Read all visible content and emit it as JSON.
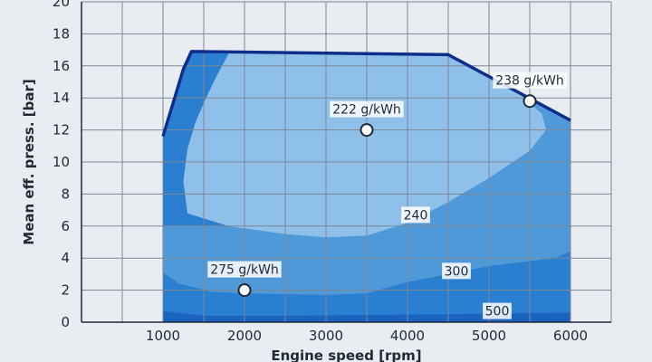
{
  "chart_data": {
    "type": "area",
    "xlabel": "Engine speed [rpm]",
    "ylabel": "Mean eff. press. [bar]",
    "xlim": [
      0,
      6500
    ],
    "ylim": [
      0,
      20
    ],
    "x_ticks": [
      "1000",
      "2000",
      "3000",
      "4000",
      "5000",
      "6000"
    ],
    "y_ticks": [
      "0",
      "2",
      "4",
      "6",
      "8",
      "10",
      "12",
      "14",
      "16",
      "18",
      "20"
    ],
    "grid": true,
    "colors": {
      "background": "#e9edf2",
      "grid": "#7d8794",
      "zone_500_plus": "#1a64c0",
      "zone_300_500": "#2b7fd0",
      "zone_240_300": "#4f99d9",
      "zone_222_240": "#8fc0ea",
      "zone_below_222": "#c5ddf2",
      "full_load_line": "#0d2f8a"
    },
    "full_load_curve": [
      {
        "x": 1000,
        "y": 11.6
      },
      {
        "x": 1250,
        "y": 15.8
      },
      {
        "x": 1350,
        "y": 16.9
      },
      {
        "x": 4500,
        "y": 16.7
      },
      {
        "x": 6000,
        "y": 12.6
      }
    ],
    "contours": [
      {
        "label": "500",
        "label_point": {
          "x": 5100,
          "y": 0.7
        },
        "points": [
          {
            "x": 1000,
            "y": 0.7
          },
          {
            "x": 1500,
            "y": 0.4
          },
          {
            "x": 2500,
            "y": 0.4
          },
          {
            "x": 3500,
            "y": 0.45
          },
          {
            "x": 4500,
            "y": 0.5
          },
          {
            "x": 6000,
            "y": 0.6
          }
        ]
      },
      {
        "label": "300",
        "label_point": {
          "x": 4600,
          "y": 3.2
        },
        "points": [
          {
            "x": 1000,
            "y": 3.1
          },
          {
            "x": 1200,
            "y": 2.4
          },
          {
            "x": 1600,
            "y": 1.9
          },
          {
            "x": 2000,
            "y": 1.8
          },
          {
            "x": 3000,
            "y": 1.7
          },
          {
            "x": 3500,
            "y": 1.8
          },
          {
            "x": 4000,
            "y": 2.5
          },
          {
            "x": 5000,
            "y": 3.5
          },
          {
            "x": 5800,
            "y": 4.0
          },
          {
            "x": 6000,
            "y": 4.4
          }
        ]
      },
      {
        "label": "240",
        "label_point": {
          "x": 4100,
          "y": 6.7
        },
        "points": [
          {
            "x": 1800,
            "y": 16.7
          },
          {
            "x": 1650,
            "y": 15.3
          },
          {
            "x": 1520,
            "y": 13.9
          },
          {
            "x": 1400,
            "y": 12.5
          },
          {
            "x": 1300,
            "y": 10.8
          },
          {
            "x": 1250,
            "y": 8.8
          },
          {
            "x": 1300,
            "y": 6.8
          },
          {
            "x": 1800,
            "y": 6.0
          },
          {
            "x": 2500,
            "y": 5.5
          },
          {
            "x": 3000,
            "y": 5.3
          },
          {
            "x": 3500,
            "y": 5.4
          },
          {
            "x": 4000,
            "y": 6.2
          },
          {
            "x": 4500,
            "y": 7.5
          },
          {
            "x": 5000,
            "y": 9.0
          },
          {
            "x": 5500,
            "y": 10.7
          },
          {
            "x": 5700,
            "y": 12.0
          },
          {
            "x": 5650,
            "y": 13.0
          },
          {
            "x": 5450,
            "y": 13.9
          },
          {
            "x": 5300,
            "y": 14.6
          },
          {
            "x": 5150,
            "y": 15.4
          },
          {
            "x": 5000,
            "y": 16.0
          }
        ]
      }
    ],
    "points": [
      {
        "label": "222 g/kWh",
        "x": 3500,
        "y": 12.0
      },
      {
        "label": "238 g/kWh",
        "x": 5500,
        "y": 13.8
      },
      {
        "label": "275 g/kWh",
        "x": 2000,
        "y": 2.0
      }
    ]
  }
}
